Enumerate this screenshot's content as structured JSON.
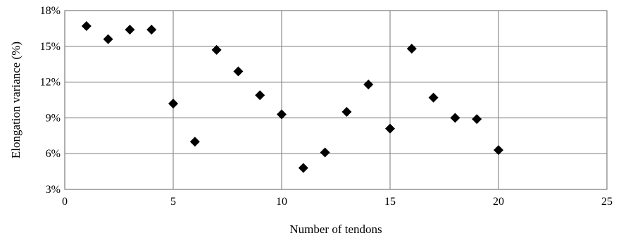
{
  "chart_data": {
    "type": "scatter",
    "title": "",
    "xlabel": "Number of tendons",
    "ylabel": "Elongation variance (%)",
    "xlim": [
      0,
      25
    ],
    "ylim": [
      3,
      18
    ],
    "xticks": [
      0,
      5,
      10,
      15,
      20,
      25
    ],
    "yticks": [
      3,
      6,
      9,
      12,
      15,
      18
    ],
    "ytick_labels": [
      "3%",
      "6%",
      "9%",
      "12%",
      "15%",
      "18%"
    ],
    "grid": true,
    "marker": "diamond",
    "marker_color": "#000000",
    "grid_color": "#8c8c8c",
    "series": [
      {
        "points": [
          {
            "x": 1,
            "y": 16.7
          },
          {
            "x": 2,
            "y": 15.6
          },
          {
            "x": 3,
            "y": 16.4
          },
          {
            "x": 4,
            "y": 16.4
          },
          {
            "x": 5,
            "y": 10.2
          },
          {
            "x": 6,
            "y": 7.0
          },
          {
            "x": 7,
            "y": 14.7
          },
          {
            "x": 8,
            "y": 12.9
          },
          {
            "x": 9,
            "y": 10.9
          },
          {
            "x": 10,
            "y": 9.3
          },
          {
            "x": 11,
            "y": 4.8
          },
          {
            "x": 12,
            "y": 6.1
          },
          {
            "x": 13,
            "y": 9.5
          },
          {
            "x": 14,
            "y": 11.8
          },
          {
            "x": 15,
            "y": 8.1
          },
          {
            "x": 16,
            "y": 14.8
          },
          {
            "x": 17,
            "y": 10.7
          },
          {
            "x": 18,
            "y": 9.0
          },
          {
            "x": 19,
            "y": 8.9
          },
          {
            "x": 20,
            "y": 6.3
          }
        ]
      }
    ]
  }
}
